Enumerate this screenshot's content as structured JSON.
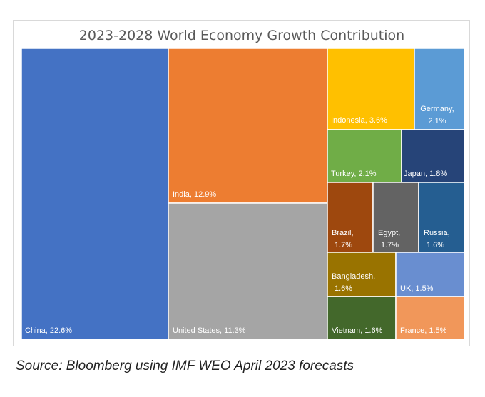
{
  "chart_data": {
    "type": "treemap",
    "title": "2023-2028 World Economy Growth Contribution",
    "unit": "%",
    "items": [
      {
        "name": "China",
        "value": 22.6,
        "label": "China, 22.6%",
        "color": "#4472c4"
      },
      {
        "name": "India",
        "value": 12.9,
        "label": "India, 12.9%",
        "color": "#ed7d31"
      },
      {
        "name": "United States",
        "value": 11.3,
        "label": "United States, 11.3%",
        "color": "#a5a5a5"
      },
      {
        "name": "Indonesia",
        "value": 3.6,
        "label": "Indonesia, 3.6%",
        "color": "#ffc000"
      },
      {
        "name": "Germany",
        "value": 2.1,
        "label": "Germany, 2.1%",
        "color": "#5b9bd5",
        "lines": [
          "Germany,",
          "2.1%"
        ]
      },
      {
        "name": "Turkey",
        "value": 2.1,
        "label": "Turkey, 2.1%",
        "color": "#70ad47"
      },
      {
        "name": "Japan",
        "value": 1.8,
        "label": "Japan, 1.8%",
        "color": "#264478"
      },
      {
        "name": "Brazil",
        "value": 1.7,
        "label": "Brazil, 1.7%",
        "color": "#9e480e",
        "lines": [
          "Brazil,",
          "1.7%"
        ]
      },
      {
        "name": "Egypt",
        "value": 1.7,
        "label": "Egypt, 1.7%",
        "color": "#636363",
        "lines": [
          "Egypt,",
          "1.7%"
        ]
      },
      {
        "name": "Russia",
        "value": 1.6,
        "label": "Russia, 1.6%",
        "color": "#255e91",
        "lines": [
          "Russia,",
          "1.6%"
        ]
      },
      {
        "name": "Bangladesh",
        "value": 1.6,
        "label": "Bangladesh, 1.6%",
        "color": "#997300",
        "lines": [
          "Bangladesh,",
          "1.6%"
        ]
      },
      {
        "name": "UK",
        "value": 1.5,
        "label": "UK, 1.5%",
        "color": "#698ed0"
      },
      {
        "name": "Vietnam",
        "value": 1.6,
        "label": "Vietnam, 1.6%",
        "color": "#43682b"
      },
      {
        "name": "France",
        "value": 1.5,
        "label": "France, 1.5%",
        "color": "#f1975a"
      }
    ]
  },
  "source": "Source: Bloomberg using IMF WEO April 2023 forecasts"
}
